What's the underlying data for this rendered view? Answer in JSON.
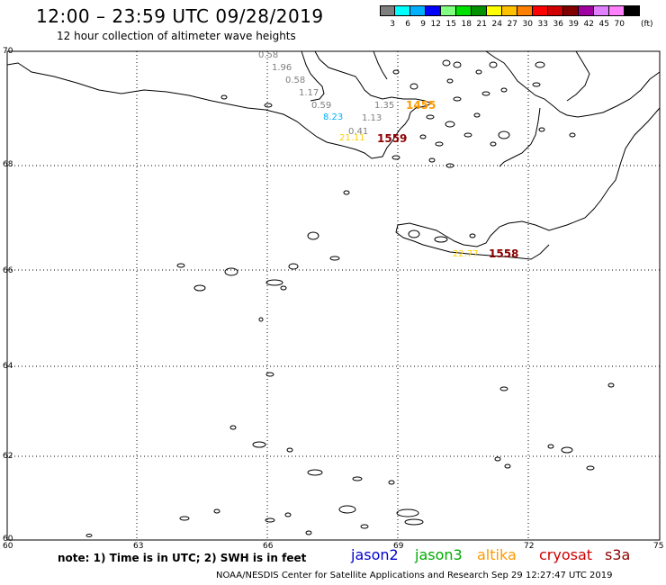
{
  "header": {
    "title": "12:00 – 23:59 UTC 09/28/2019",
    "subtitle": "12 hour collection of altimeter wave heights"
  },
  "colorbar": {
    "colors": [
      "#7f7f7f",
      "#00ffff",
      "#00b0ff",
      "#0000ff",
      "#80ff80",
      "#00e000",
      "#009000",
      "#ffff00",
      "#ffc000",
      "#ff8000",
      "#ff0000",
      "#d00000",
      "#800000",
      "#a000a0",
      "#e080ff",
      "#ff80ff",
      "#000000"
    ],
    "labels": [
      "3",
      "6",
      "9",
      "12",
      "15",
      "18",
      "21",
      "24",
      "27",
      "30",
      "33",
      "36",
      "39",
      "42",
      "45",
      "70"
    ],
    "unit": "(ft)"
  },
  "map": {
    "y_ticks": [
      "70",
      "68",
      "66",
      "64",
      "62",
      "60"
    ],
    "x_ticks": [
      "60",
      "63",
      "66",
      "69",
      "72",
      "75"
    ],
    "wave_values": [
      {
        "text": "0.58",
        "color": "#7f7f7f"
      },
      {
        "text": "1.96",
        "color": "#7f7f7f"
      },
      {
        "text": "0.58",
        "color": "#7f7f7f"
      },
      {
        "text": "1.17",
        "color": "#7f7f7f"
      },
      {
        "text": "0.59",
        "color": "#7f7f7f"
      },
      {
        "text": "1.35",
        "color": "#7f7f7f"
      },
      {
        "text": "1.13",
        "color": "#7f7f7f"
      },
      {
        "text": "0.41",
        "color": "#7f7f7f"
      },
      {
        "text": "8.23",
        "color": "#00b0ff"
      },
      {
        "text": "21.11",
        "color": "#ffd000"
      },
      {
        "text": "22.77",
        "color": "#ffd000"
      }
    ],
    "pass_times": [
      {
        "text": "1455",
        "color": "#ff9900"
      },
      {
        "text": "1559",
        "color": "#8b0000"
      },
      {
        "text": "1558",
        "color": "#8b0000"
      }
    ]
  },
  "footer": {
    "note": "note: 1) Time is in UTC; 2) SWH is in feet",
    "satellites": [
      {
        "name": "jason2",
        "color": "#0000cc"
      },
      {
        "name": "jason3",
        "color": "#00aa00"
      },
      {
        "name": "altika",
        "color": "#ff9900"
      },
      {
        "name": "cryosat",
        "color": "#cc0000"
      },
      {
        "name": "s3a",
        "color": "#8b0000"
      }
    ],
    "credit": "NOAA/NESDIS Center for Satellite Applications and Research     Sep 29 12:27:47 UTC 2019"
  }
}
